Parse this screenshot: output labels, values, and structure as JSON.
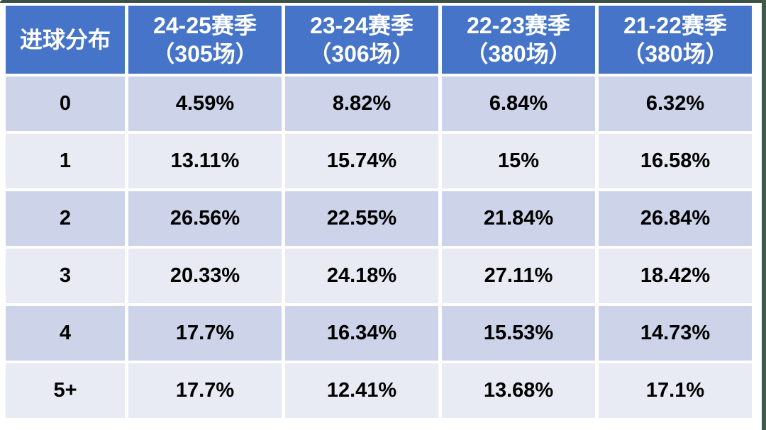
{
  "table": {
    "title_cell": "进球分布",
    "season_headers": [
      {
        "season": "24-25赛季",
        "matches": "（305场）"
      },
      {
        "season": "23-24赛季",
        "matches": "（306场）"
      },
      {
        "season": "22-23赛季",
        "matches": "（380场）"
      },
      {
        "season": "21-22赛季",
        "matches": "（380场）"
      }
    ],
    "rows": [
      {
        "goals": "0",
        "values": [
          "4.59%",
          "8.82%",
          "6.84%",
          "6.32%"
        ]
      },
      {
        "goals": "1",
        "values": [
          "13.11%",
          "15.74%",
          "15%",
          "16.58%"
        ]
      },
      {
        "goals": "2",
        "values": [
          "26.56%",
          "22.55%",
          "21.84%",
          "26.84%"
        ]
      },
      {
        "goals": "3",
        "values": [
          "20.33%",
          "24.18%",
          "27.11%",
          "18.42%"
        ]
      },
      {
        "goals": "4",
        "values": [
          "17.7%",
          "16.34%",
          "15.53%",
          "14.73%"
        ]
      },
      {
        "goals": "5+",
        "values": [
          "17.7%",
          "12.41%",
          "13.68%",
          "17.1%"
        ]
      }
    ],
    "colors": {
      "header_bg": "#4674C8",
      "header_text": "#FFFFFF",
      "band_dark": "#CDD3E8",
      "band_light": "#E9EBF4",
      "cell_text": "#000000",
      "gap": "#FFFFFF",
      "edge_top": "#3D5044",
      "edge_right": "#3E5A49"
    }
  },
  "chart_data": {
    "type": "table",
    "title": "进球分布",
    "columns": [
      "进球分布",
      "24-25赛季（305场）",
      "23-24赛季（306场）",
      "22-23赛季（380场）",
      "21-22赛季（380场）"
    ],
    "row_labels_goals": [
      "0",
      "1",
      "2",
      "3",
      "4",
      "5+"
    ],
    "series": [
      {
        "name": "24-25赛季（305场）",
        "matches": 305,
        "values_pct": [
          4.59,
          13.11,
          26.56,
          20.33,
          17.7,
          17.7
        ]
      },
      {
        "name": "23-24赛季（306场）",
        "matches": 306,
        "values_pct": [
          8.82,
          15.74,
          22.55,
          24.18,
          16.34,
          12.41
        ]
      },
      {
        "name": "22-23赛季（380场）",
        "matches": 380,
        "values_pct": [
          6.84,
          15.0,
          21.84,
          27.11,
          15.53,
          13.68
        ]
      },
      {
        "name": "21-22赛季（380场）",
        "matches": 380,
        "values_pct": [
          6.32,
          16.58,
          26.84,
          18.42,
          14.73,
          17.1
        ]
      }
    ]
  }
}
